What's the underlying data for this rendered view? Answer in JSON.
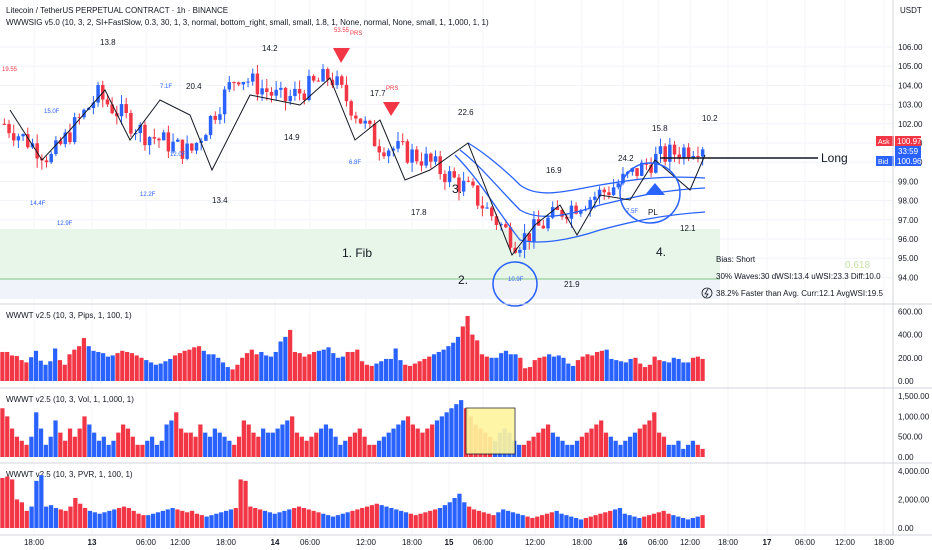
{
  "header": {
    "symbol_line": "Litecoin / TetherUS PERPETUAL CONTRACT · 1h · BINANCE",
    "indicator_line": "WWWSIG v5.0 (10, 3, 2, SI+FastSlow, 0.3, 30, 1, 3, normal, bottom_right, small, small, 1.8, 1, None, normal, None, small, 1, 1,000, 1, 1)"
  },
  "price_axis": {
    "currency": "USDT",
    "ticks": [
      "106.00",
      "105.00",
      "104.00",
      "103.00",
      "102.00",
      "101.00",
      "100.00",
      "99.00",
      "98.00",
      "97.00",
      "96.00",
      "95.00",
      "94.00"
    ],
    "ask_label": "Ask",
    "ask_value": "100.97",
    "countdown": "33:59",
    "bid_label": "Bid",
    "bid_value": "100.96"
  },
  "panels": [
    {
      "title": "WWWT v2.5 (10, 3, Pips, 1, 100, 1)",
      "ticks": [
        "600.00",
        "400.00",
        "200.00",
        "0.00"
      ]
    },
    {
      "title": "WWWT v2.5 (10, 3, Vol, 1, 1,000, 1)",
      "ticks": [
        "1,500.00",
        "1,000.00",
        "500.00",
        "0.00"
      ]
    },
    {
      "title": "WWWT v2.5 (10, 3, PVR, 1, 100, 1)",
      "ticks": [
        "4,000.00",
        "2,000.00",
        "0.00"
      ]
    }
  ],
  "time_axis": {
    "labels": [
      "18:00",
      "13",
      "06:00",
      "12:00",
      "18:00",
      "14",
      "06:00",
      "12:00",
      "18:00",
      "15",
      "06:00",
      "12:00",
      "18:00",
      "16",
      "06:00",
      "12:00",
      "18:00",
      "17",
      "06:00",
      "12:00",
      "18:00"
    ],
    "bold_labels": [
      "13",
      "14",
      "15",
      "16",
      "17"
    ]
  },
  "annotations": {
    "fib_label": "1. Fib",
    "fib_level": "0.618",
    "step2": "2.",
    "step3": "3.",
    "step4": "4.",
    "long_label": "Long",
    "pl_label": "PL",
    "prs_labels": [
      "PRS",
      "PRS"
    ],
    "wave_numbers_black": [
      "13.8",
      "14.2",
      "20.4",
      "14.9",
      "13.4",
      "17.7",
      "17.8",
      "22.6",
      "16.9",
      "21.9",
      "24.2",
      "15.8",
      "10.2",
      "12.1"
    ],
    "wave_numbers_blue": [
      "15.0F",
      "7.1F",
      "12.0F",
      "12.2F",
      "14.4F",
      "12.9F",
      "6.8F",
      "10.9F",
      "7.5F"
    ],
    "wave_numbers_red": [
      "19.55",
      "53.55"
    ]
  },
  "info_box": {
    "bias": "Bias: Short",
    "waves": "30% Waves:30 dWSI:13.4 uWSI:23.3 Diff:10.0",
    "speed": "38.2% Faster than Avg. Curr:12.1 AvgWSI:19.5",
    "icon": "lightning-icon"
  },
  "colors": {
    "up": "#2962ff",
    "down": "#f23645",
    "fib_zone": "#e8f5e9",
    "ask": "#f23645",
    "bid": "#2962ff"
  },
  "chart_data": [
    {
      "type": "candlestick",
      "title": "Litecoin / TetherUS PERPETUAL CONTRACT · 1h · BINANCE",
      "ylim": [
        93.5,
        107.2
      ],
      "x": [
        "12 17:00",
        "13 00:00",
        "13 06:00",
        "13 12:00",
        "13 18:00",
        "14 00:00",
        "14 06:00",
        "14 12:00",
        "14 18:00",
        "15 00:00",
        "15 06:00",
        "15 12:00",
        "15 18:00",
        "16 00:00",
        "16 06:00",
        "16 12:00"
      ],
      "close": [
        102.0,
        100.2,
        103.5,
        101.5,
        100.5,
        104.6,
        103.2,
        104.5,
        101.0,
        100.2,
        98.5,
        95.8,
        97.5,
        98.6,
        100.2,
        100.97
      ],
      "fib_zone": [
        95.3,
        97.2
      ],
      "fib_0618": 95.0,
      "long_level": 100.45
    },
    {
      "type": "bar",
      "name": "Pips",
      "ylim": [
        0,
        620
      ],
      "values": [
        250,
        250,
        220,
        215,
        180,
        160,
        205,
        260,
        175,
        140,
        170,
        280,
        180,
        140,
        230,
        270,
        300,
        370,
        300,
        260,
        250,
        240,
        210,
        220,
        240,
        260,
        250,
        240,
        220,
        200,
        180,
        160,
        140,
        150,
        170,
        190,
        220,
        240,
        260,
        270,
        290,
        300,
        260,
        230,
        230,
        200,
        160,
        120,
        100,
        140,
        200,
        240,
        270,
        230,
        250,
        220,
        210,
        250,
        340,
        380,
        440,
        250,
        240,
        210,
        230,
        250,
        260,
        270,
        290,
        240,
        200,
        210,
        250,
        250,
        270,
        170,
        140,
        130,
        150,
        170,
        190,
        190,
        280,
        180,
        140,
        130,
        150,
        170,
        190,
        210,
        230,
        250,
        270,
        300,
        330,
        380,
        470,
        560,
        400,
        350,
        230,
        210,
        200,
        200,
        240,
        260,
        230,
        230,
        200,
        110,
        120,
        180,
        200,
        210,
        230,
        210,
        220,
        200,
        150,
        130,
        180,
        210,
        230,
        220,
        250,
        260,
        270,
        190,
        180,
        170,
        160,
        190,
        200,
        150,
        120,
        140,
        210,
        180,
        170,
        160,
        200,
        190,
        160,
        160,
        200,
        210,
        190
      ]
    },
    {
      "type": "bar",
      "name": "Vol",
      "ylim": [
        0,
        1600
      ],
      "values": [
        1200,
        1000,
        700,
        500,
        400,
        300,
        500,
        1100,
        700,
        300,
        500,
        900,
        600,
        400,
        700,
        500,
        700,
        1000,
        800,
        600,
        400,
        500,
        300,
        400,
        600,
        800,
        700,
        500,
        300,
        300,
        400,
        500,
        300,
        400,
        800,
        900,
        1100,
        700,
        600,
        600,
        500,
        800,
        600,
        500,
        700,
        600,
        500,
        400,
        300,
        500,
        900,
        800,
        600,
        500,
        700,
        600,
        600,
        700,
        800,
        900,
        1000,
        600,
        500,
        400,
        500,
        600,
        700,
        800,
        700,
        500,
        300,
        400,
        500,
        600,
        700,
        500,
        300,
        300,
        400,
        500,
        600,
        700,
        800,
        900,
        1000,
        800,
        700,
        600,
        700,
        800,
        900,
        1000,
        1100,
        1200,
        1300,
        1400,
        1200,
        1000,
        800,
        700,
        600,
        500,
        400,
        600,
        700,
        600,
        400,
        300,
        300,
        400,
        500,
        600,
        700,
        800,
        600,
        500,
        400,
        300,
        300,
        400,
        500,
        600,
        700,
        800,
        900,
        600,
        500,
        400,
        300,
        400,
        500,
        600,
        700,
        800,
        900,
        1100,
        600,
        500,
        300,
        300,
        400,
        200,
        300,
        400,
        300,
        200
      ]
    },
    {
      "type": "bar",
      "name": "PVR",
      "ylim": [
        0,
        4200
      ],
      "values": [
        3500,
        3600,
        3400,
        2000,
        1800,
        1200,
        1500,
        3300,
        3700,
        1500,
        1600,
        1400,
        1300,
        1200,
        1500,
        2100,
        1700,
        1400,
        1200,
        1100,
        1000,
        1100,
        1200,
        1300,
        1400,
        1500,
        1400,
        1200,
        1000,
        900,
        900,
        1000,
        1100,
        1200,
        1300,
        1400,
        1300,
        1200,
        1100,
        1200,
        1000,
        900,
        800,
        900,
        1000,
        1100,
        1200,
        1300,
        1400,
        3400,
        3300,
        1500,
        1400,
        1300,
        1200,
        1100,
        1000,
        1100,
        1200,
        1300,
        1400,
        1500,
        1400,
        1300,
        1200,
        1100,
        1000,
        900,
        800,
        900,
        1000,
        1100,
        1200,
        1300,
        1400,
        1500,
        1600,
        1700,
        1600,
        1500,
        1400,
        1300,
        1200,
        1100,
        1000,
        900,
        1000,
        1100,
        1200,
        1300,
        1400,
        1600,
        1800,
        2100,
        2400,
        1800,
        1500,
        1300,
        1200,
        1100,
        1000,
        900,
        1100,
        1300,
        1200,
        1100,
        1000,
        900,
        800,
        700,
        800,
        900,
        1000,
        1100,
        1200,
        1000,
        900,
        800,
        700,
        600,
        700,
        800,
        900,
        1000,
        1100,
        1200,
        1300,
        1400,
        1000,
        900,
        800,
        700,
        800,
        900,
        1000,
        1100,
        1200,
        1000,
        900,
        800,
        700,
        600,
        700,
        800,
        900
      ]
    }
  ]
}
